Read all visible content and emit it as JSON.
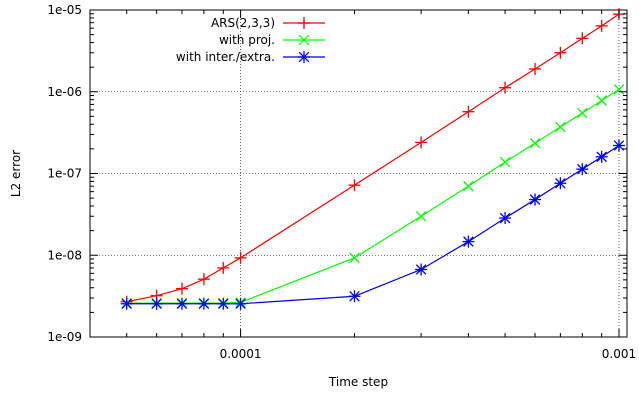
{
  "chart_data": {
    "type": "line",
    "title": "",
    "xlabel": "Time step",
    "ylabel": "L2 error",
    "x_scale": "log",
    "y_scale": "log",
    "xlim": [
      4e-05,
      0.00105
    ],
    "ylim": [
      1e-09,
      1e-05
    ],
    "x_ticks": [
      {
        "value": 0.0001,
        "label": "0.0001"
      },
      {
        "value": 0.001,
        "label": "0.001"
      }
    ],
    "y_ticks": [
      {
        "value": 1e-09,
        "label": "1e-09"
      },
      {
        "value": 1e-08,
        "label": "1e-08"
      },
      {
        "value": 1e-07,
        "label": "1e-07"
      },
      {
        "value": 1e-06,
        "label": "1e-06"
      },
      {
        "value": 1e-05,
        "label": "1e-05"
      }
    ],
    "grid": true,
    "legend_position": "top-left",
    "series": [
      {
        "name": "ARS(2,3,3)",
        "color": "#ff0000",
        "marker": "plus",
        "x": [
          5e-05,
          6e-05,
          7e-05,
          8e-05,
          9e-05,
          0.0001,
          0.0002,
          0.0003,
          0.0004,
          0.0005,
          0.0006,
          0.0007,
          0.0008,
          0.0009,
          0.001
        ],
        "y": [
          2.7e-09,
          3.2e-09,
          3.9e-09,
          5.1e-09,
          7e-09,
          9.3e-09,
          7.2e-08,
          2.4e-07,
          5.7e-07,
          1.12e-06,
          1.9e-06,
          3e-06,
          4.5e-06,
          6.4e-06,
          8.9e-06
        ]
      },
      {
        "name": "with proj.",
        "color": "#00ff00",
        "marker": "x",
        "x": [
          5e-05,
          6e-05,
          7e-05,
          8e-05,
          9e-05,
          0.0001,
          0.0002,
          0.0003,
          0.0004,
          0.0005,
          0.0006,
          0.0007,
          0.0008,
          0.0009,
          0.001
        ],
        "y": [
          2.6e-09,
          2.6e-09,
          2.6e-09,
          2.6e-09,
          2.6e-09,
          2.65e-09,
          9.3e-09,
          3e-08,
          7e-08,
          1.38e-07,
          2.35e-07,
          3.7e-07,
          5.5e-07,
          7.8e-07,
          1.07e-06
        ]
      },
      {
        "name": "with inter./extra.",
        "color": "#0000ff",
        "marker": "star",
        "x": [
          5e-05,
          6e-05,
          7e-05,
          8e-05,
          9e-05,
          0.0001,
          0.0002,
          0.0003,
          0.0004,
          0.0005,
          0.0006,
          0.0007,
          0.0008,
          0.0009,
          0.001
        ],
        "y": [
          2.55e-09,
          2.55e-09,
          2.55e-09,
          2.55e-09,
          2.55e-09,
          2.55e-09,
          3.15e-09,
          6.7e-09,
          1.47e-08,
          2.85e-08,
          4.8e-08,
          7.6e-08,
          1.13e-07,
          1.6e-07,
          2.2e-07
        ]
      }
    ]
  }
}
